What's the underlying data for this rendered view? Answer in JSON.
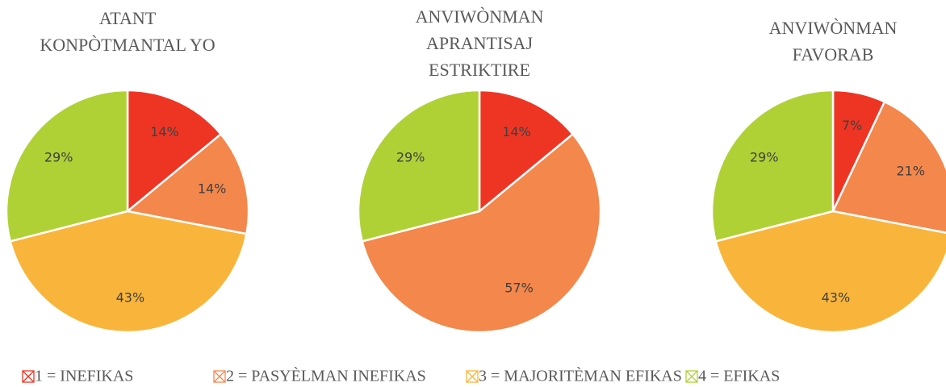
{
  "chart_data": [
    {
      "type": "pie",
      "title": "ATANT KONPÒTMANTAL YO",
      "categories": [
        "1 = INEFIKAS",
        "2 = PASYÈLMAN INEFIKAS",
        "3 = MAJORITÈMAN EFIKAS",
        "4 = EFIKAS"
      ],
      "values": [
        14,
        14,
        43,
        29
      ],
      "value_labels": [
        "14%",
        "14%",
        "43%",
        "29%"
      ],
      "colors": [
        "#ee3524",
        "#f4874b",
        "#f9b53b",
        "#b0d136"
      ]
    },
    {
      "type": "pie",
      "title": "ANVIWÒNMAN APRANTISAJ ESTRIKTIRE",
      "categories": [
        "1 = INEFIKAS",
        "2 = PASYÈLMAN INEFIKAS",
        "3 = MAJORITÈMAN EFIKAS",
        "4 = EFIKAS"
      ],
      "values": [
        14,
        57,
        0,
        29
      ],
      "value_labels": [
        "14%",
        "57%",
        null,
        "29%"
      ],
      "colors": [
        "#ee3524",
        "#f4874b",
        "#f9b53b",
        "#b0d136"
      ]
    },
    {
      "type": "pie",
      "title": "ANVIWÒNMAN FAVORAB",
      "categories": [
        "1 = INEFIKAS",
        "2 = PASYÈLMAN INEFIKAS",
        "3 = MAJORITÈMAN EFIKAS",
        "4 = EFIKAS"
      ],
      "values": [
        7,
        21,
        43,
        29
      ],
      "value_labels": [
        "7%",
        "21%",
        "43%",
        "29%"
      ],
      "colors": [
        "#ee3524",
        "#f4874b",
        "#f9b53b",
        "#b0d136"
      ]
    }
  ]
}
